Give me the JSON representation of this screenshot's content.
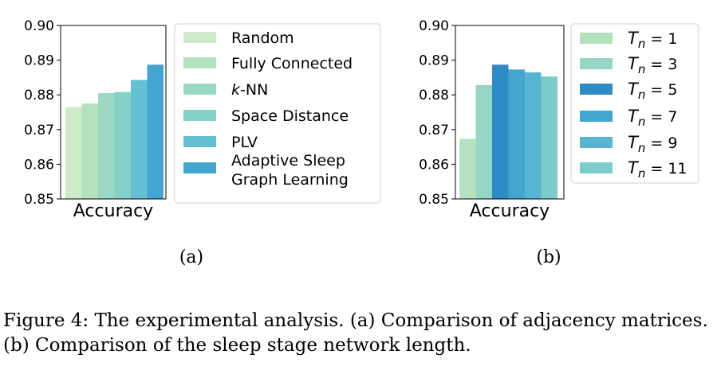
{
  "chart_data": [
    {
      "type": "bar",
      "panel_label": "(a)",
      "categories": [
        "Accuracy"
      ],
      "ylim": [
        0.85,
        0.9
      ],
      "yticks": [
        "0.85",
        "0.86",
        "0.87",
        "0.88",
        "0.89",
        "0.90"
      ],
      "xlabel": "Accuracy",
      "legend_position": "right",
      "series": [
        {
          "name": "Random",
          "values": [
            0.8765
          ],
          "color": "#cdebc8"
        },
        {
          "name": "Fully Connected",
          "values": [
            0.8775
          ],
          "color": "#b4e2bf"
        },
        {
          "name": "k-NN",
          "values": [
            0.8805
          ],
          "color": "#9bd9c4"
        },
        {
          "name": "Space Distance",
          "values": [
            0.8808
          ],
          "color": "#84d1ca"
        },
        {
          "name": "PLV",
          "values": [
            0.8843
          ],
          "color": "#66c0d4"
        },
        {
          "name": "Adaptive Sleep Graph Learning",
          "values": [
            0.8887
          ],
          "color": "#43a6d0"
        }
      ]
    },
    {
      "type": "bar",
      "panel_label": "(b)",
      "categories": [
        "Accuracy"
      ],
      "ylim": [
        0.85,
        0.9
      ],
      "yticks": [
        "0.85",
        "0.86",
        "0.87",
        "0.88",
        "0.89",
        "0.90"
      ],
      "xlabel": "Accuracy",
      "legend_position": "right",
      "series": [
        {
          "name": "Tn = 1",
          "values": [
            0.8673
          ],
          "color": "#b4e2bf"
        },
        {
          "name": "Tn = 3",
          "values": [
            0.8828
          ],
          "color": "#95d6c4"
        },
        {
          "name": "Tn = 5",
          "values": [
            0.8887
          ],
          "color": "#2e8bc4"
        },
        {
          "name": "Tn = 7",
          "values": [
            0.8873
          ],
          "color": "#43a6d0"
        },
        {
          "name": "Tn = 9",
          "values": [
            0.8865
          ],
          "color": "#57b5d3"
        },
        {
          "name": "Tn = 11",
          "values": [
            0.8853
          ],
          "color": "#7ccdca"
        }
      ]
    }
  ],
  "caption": "Figure 4: The experimental analysis. (a) Comparison of adjacency matrices. (b) Comparison of the sleep stage network length."
}
